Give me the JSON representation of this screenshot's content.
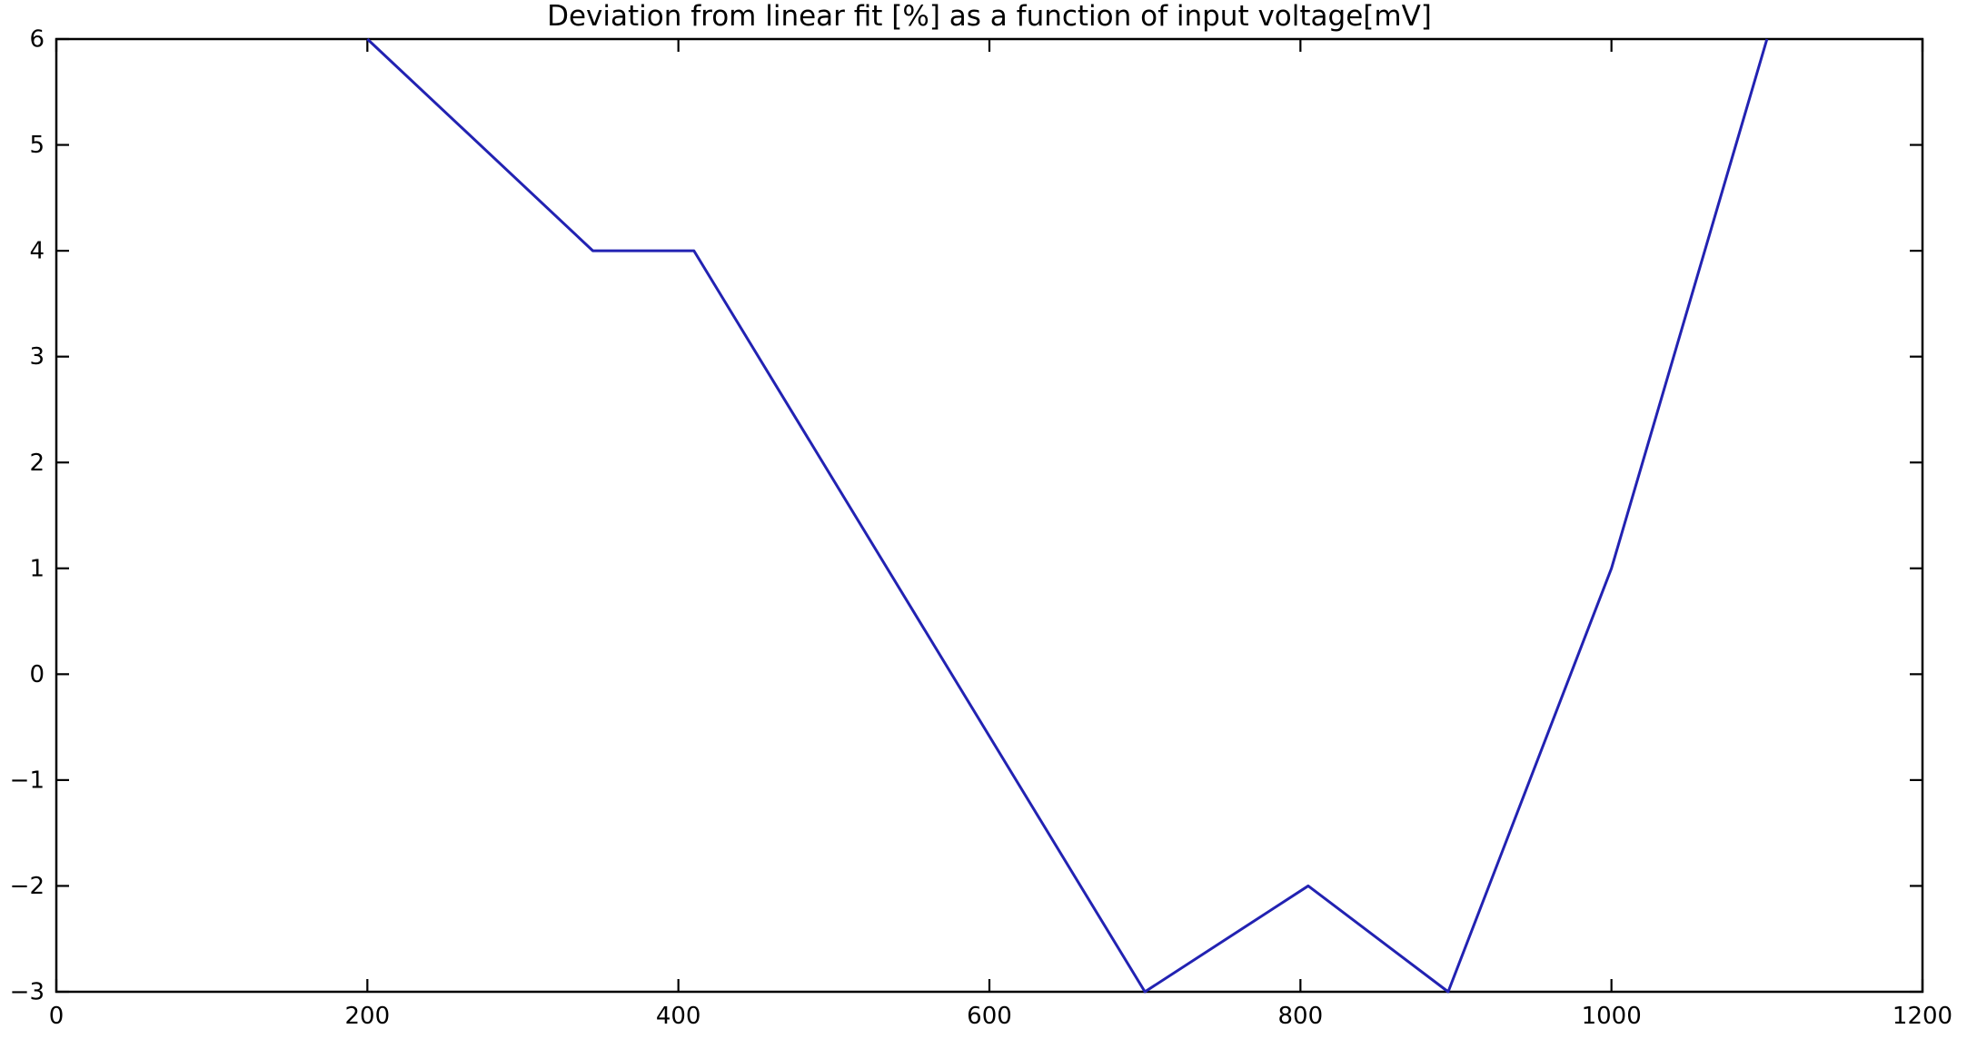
{
  "figure": {
    "background_color": "#ffffff"
  },
  "chart_data": {
    "type": "line",
    "title": "Deviation from linear fit [%] as a function of input voltage[mV]",
    "xlabel": "",
    "ylabel": "",
    "x": [
      200,
      345,
      410,
      700,
      805,
      895,
      1000,
      1100
    ],
    "y": [
      6,
      4,
      4,
      -3,
      -2,
      -3,
      1,
      6
    ],
    "xlim": [
      0,
      1200
    ],
    "ylim": [
      -3,
      6
    ],
    "xticks": [
      0,
      200,
      400,
      600,
      800,
      1000,
      1200
    ],
    "yticks": [
      6,
      5,
      4,
      3,
      2,
      1,
      0,
      -1,
      -2,
      -3
    ],
    "grid": false,
    "legend": null,
    "tick_direction": "in",
    "ticks_on_all_sides": true,
    "line_color": "#2222b2",
    "axis_color": "#000000",
    "text_color": "#000000"
  }
}
